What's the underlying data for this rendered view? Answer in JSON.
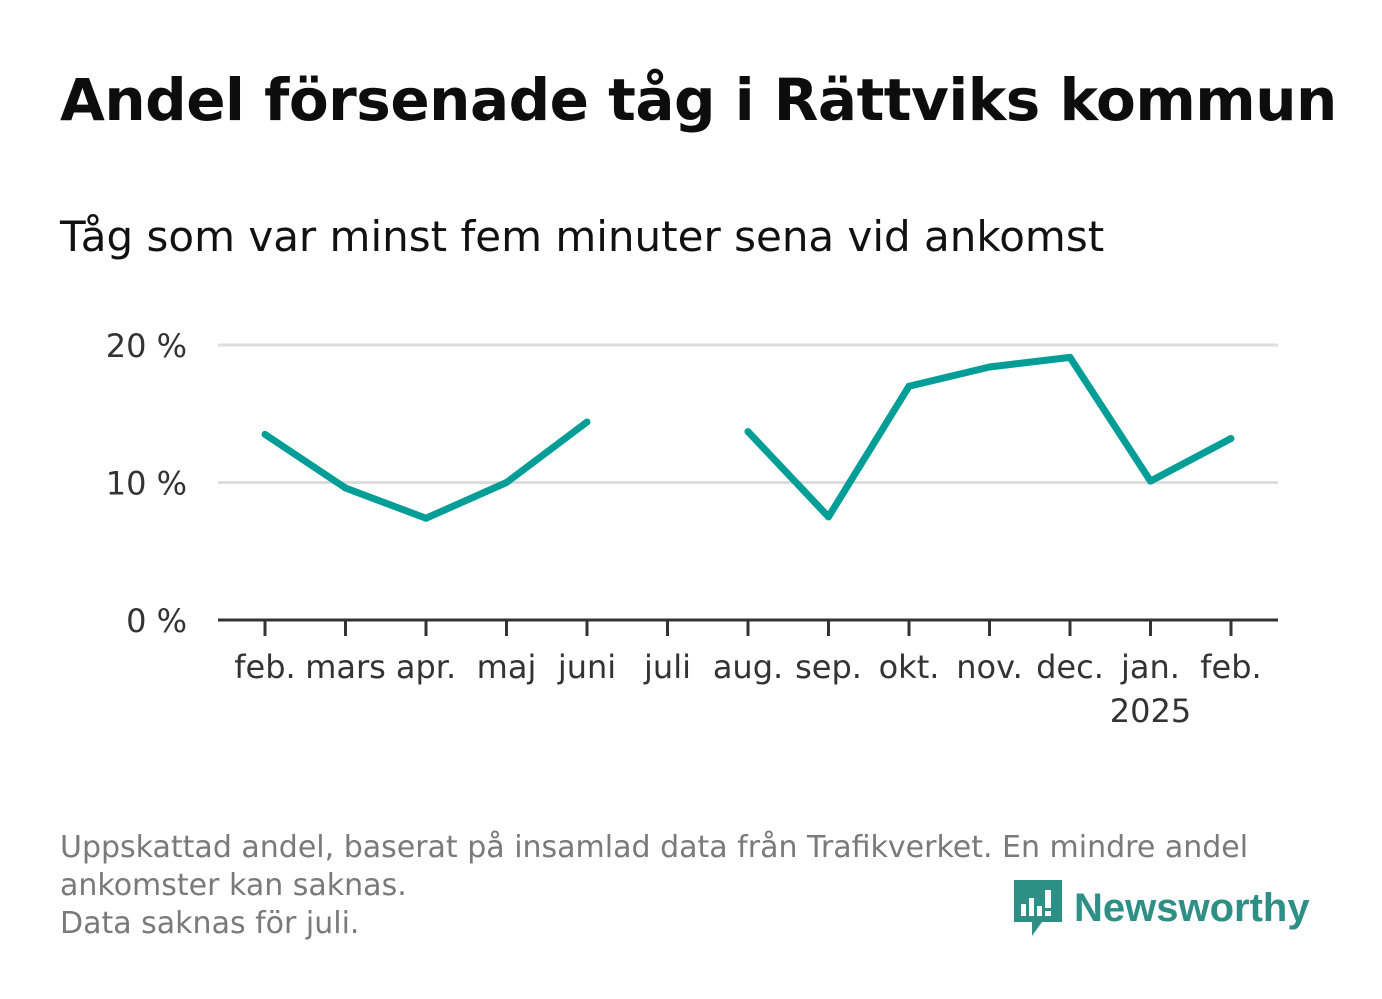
{
  "title": "Andel försenade tåg i Rättviks kommun",
  "subtitle": "Tåg som var minst fem minuter sena vid ankomst",
  "footer": {
    "line1": "Uppskattad andel, baserat på insamlad data från Trafikverket. En mindre andel",
    "line2": "ankomster kan saknas.",
    "line3": "Data saknas för juli."
  },
  "logo": {
    "text": "Newsworthy",
    "icon": "newsworthy-logo-icon"
  },
  "colors": {
    "line": "#009e96",
    "grid": "#dddddd",
    "axis": "#333333",
    "logo": "#2e8f86"
  },
  "chart_data": {
    "type": "line",
    "categories": [
      "feb.",
      "mars",
      "apr.",
      "maj",
      "juni",
      "juli",
      "aug.",
      "sep.",
      "okt.",
      "nov.",
      "dec.",
      "jan.",
      "feb."
    ],
    "year_label": "2025",
    "year_label_index": 11,
    "series": [
      {
        "values": [
          13.5,
          9.6,
          7.4,
          10.0,
          14.4,
          null,
          13.7,
          7.5,
          17.0,
          18.4,
          19.1,
          10.1,
          13.2
        ]
      }
    ],
    "yticks": [
      0,
      10,
      20
    ],
    "ytick_labels": [
      "0 %",
      "10 %",
      "20 %"
    ],
    "ylim": [
      0,
      20
    ],
    "grid": true,
    "legend": "none"
  }
}
